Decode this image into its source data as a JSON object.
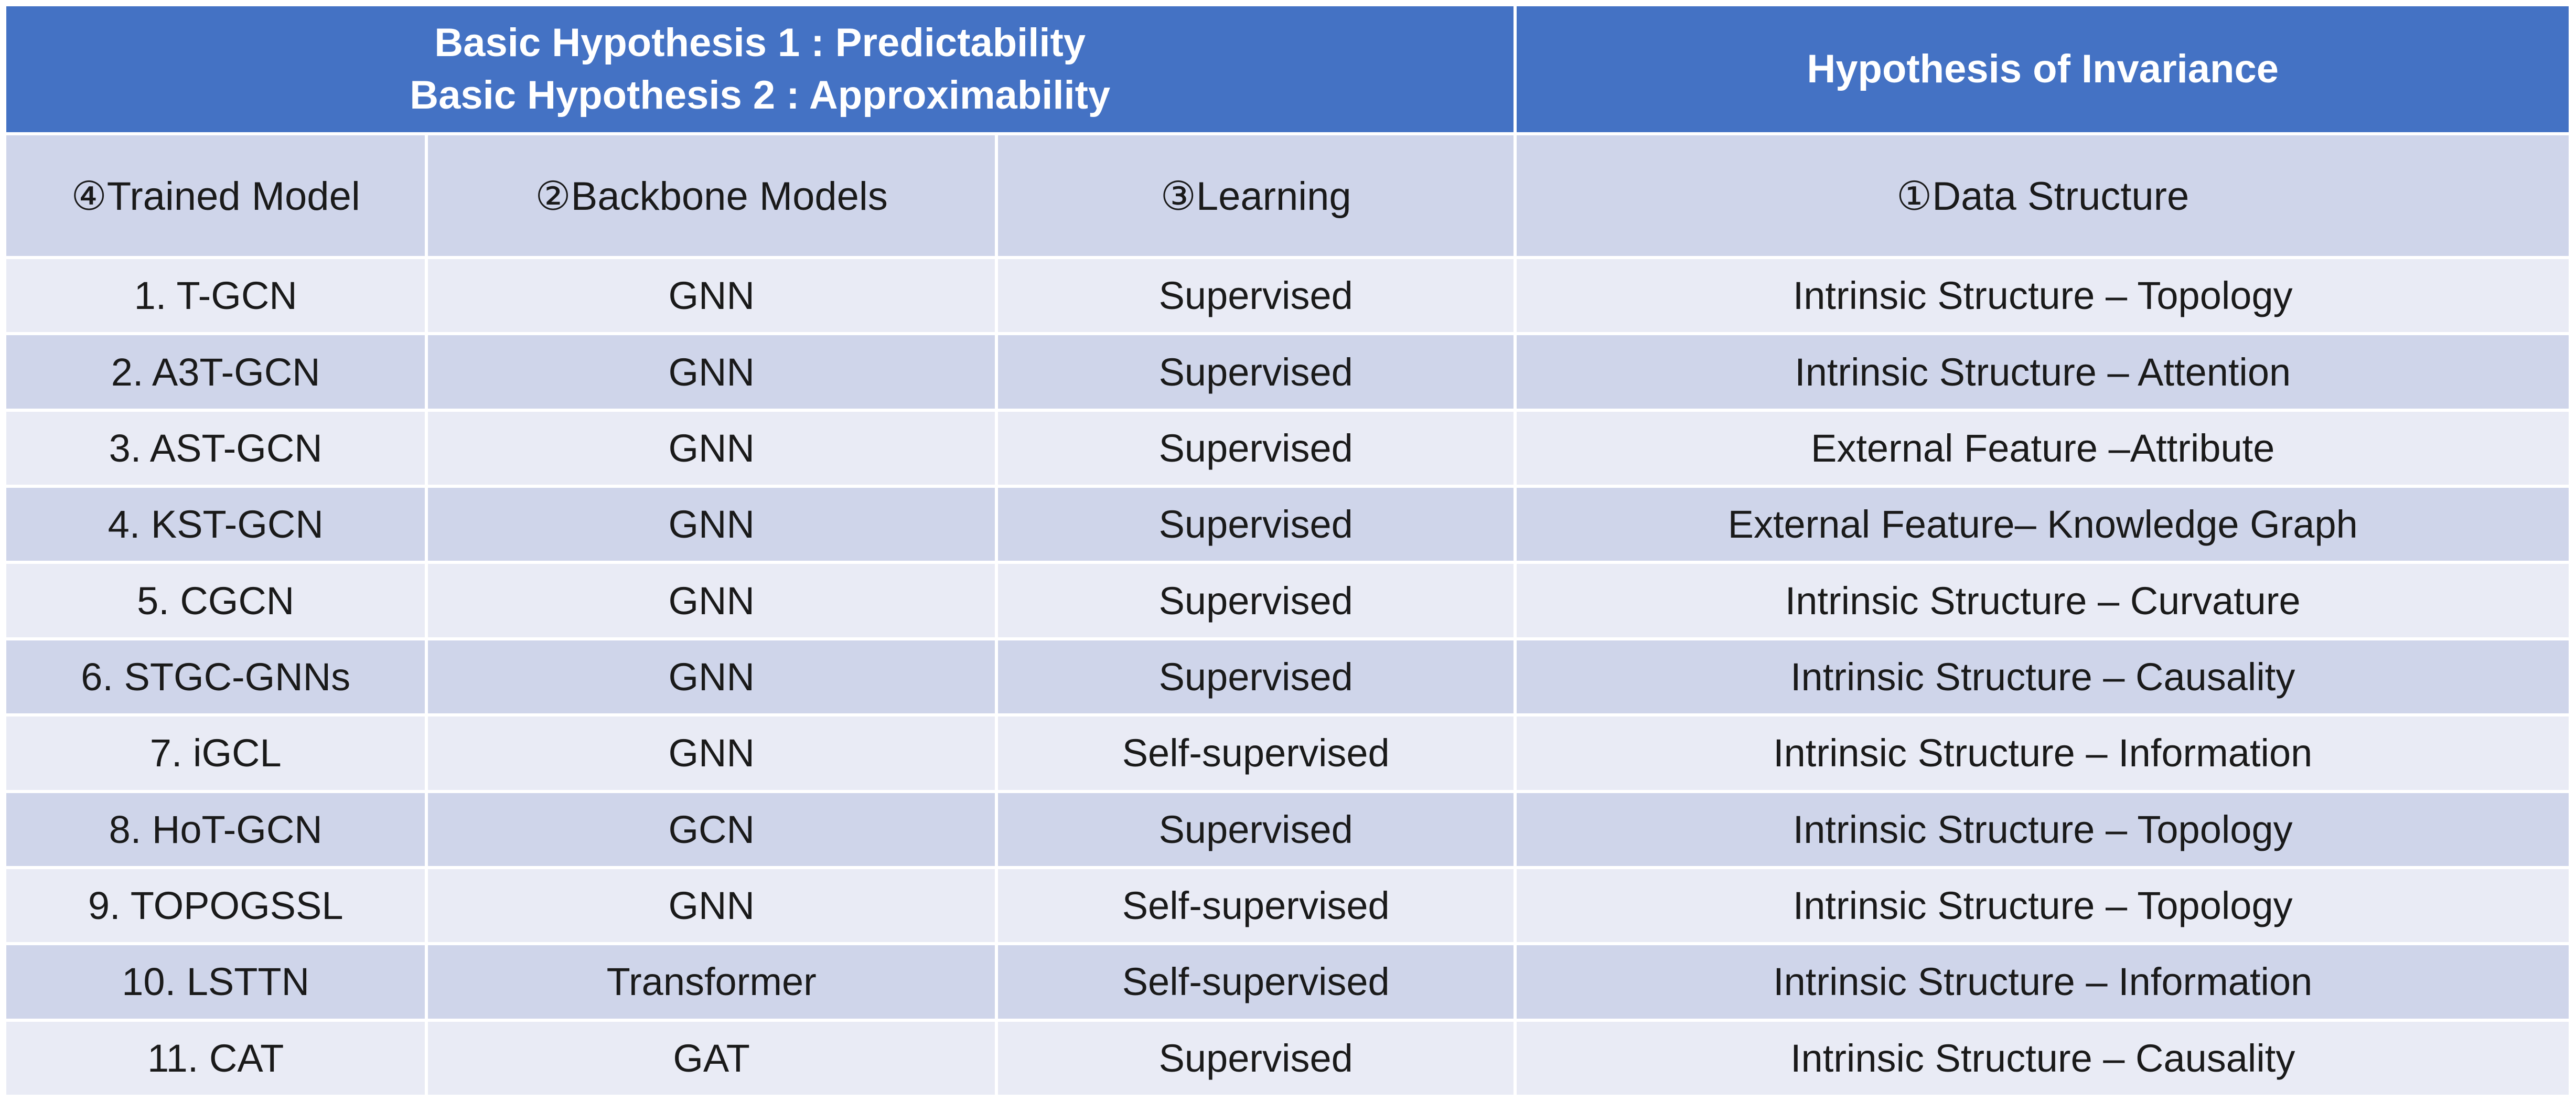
{
  "header": {
    "hypotheses": [
      "Basic Hypothesis 1 : Predictability",
      "Basic Hypothesis 2 : Approximability"
    ],
    "invariance": "Hypothesis of Invariance"
  },
  "columns": [
    "④Trained Model",
    "②Backbone Models",
    "③Learning",
    "①Data Structure"
  ],
  "rows": [
    {
      "model": "1. T-GCN",
      "backbone": "GNN",
      "learning": "Supervised",
      "structure": "Intrinsic Structure – Topology"
    },
    {
      "model": "2. A3T-GCN",
      "backbone": "GNN",
      "learning": "Supervised",
      "structure": "Intrinsic Structure – Attention"
    },
    {
      "model": "3. AST-GCN",
      "backbone": "GNN",
      "learning": "Supervised",
      "structure": "External Feature  –Attribute"
    },
    {
      "model": "4. KST-GCN",
      "backbone": "GNN",
      "learning": "Supervised",
      "structure": "External Feature– Knowledge Graph"
    },
    {
      "model": "5. CGCN",
      "backbone": "GNN",
      "learning": "Supervised",
      "structure": "Intrinsic Structure – Curvature"
    },
    {
      "model": "6. STGC-GNNs",
      "backbone": "GNN",
      "learning": "Supervised",
      "structure": "Intrinsic Structure – Causality"
    },
    {
      "model": "7. iGCL",
      "backbone": "GNN",
      "learning": "Self-supervised",
      "structure": "Intrinsic Structure – Information"
    },
    {
      "model": "8. HoT-GCN",
      "backbone": "GCN",
      "learning": "Supervised",
      "structure": "Intrinsic Structure – Topology"
    },
    {
      "model": "9. TOPOGSSL",
      "backbone": "GNN",
      "learning": "Self-supervised",
      "structure": "Intrinsic Structure – Topology"
    },
    {
      "model": "10. LSTTN",
      "backbone": "Transformer",
      "learning": "Self-supervised",
      "structure": "Intrinsic Structure – Information"
    },
    {
      "model": "11. CAT",
      "backbone": "GAT",
      "learning": "Supervised",
      "structure": "Intrinsic Structure – Causality"
    }
  ]
}
